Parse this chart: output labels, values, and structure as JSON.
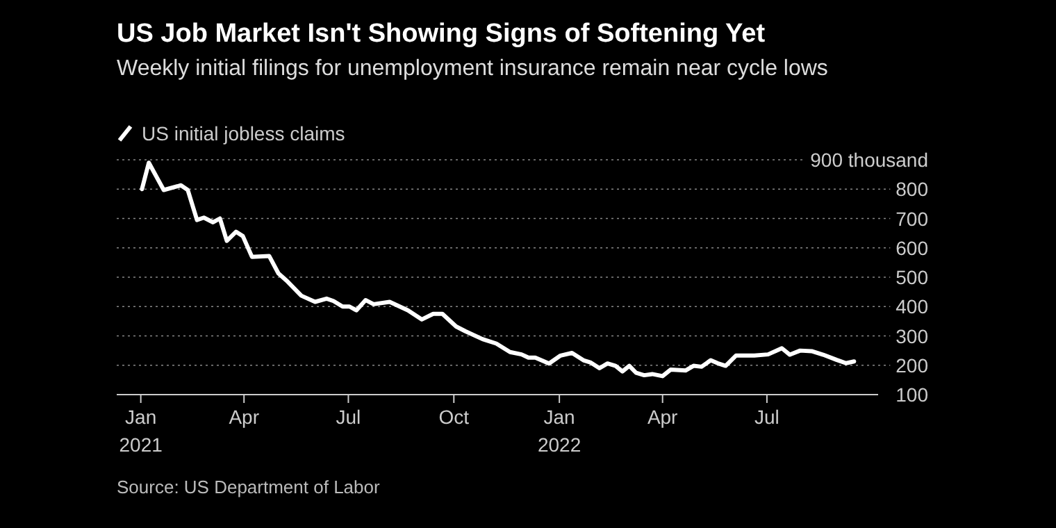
{
  "chart_data": {
    "type": "line",
    "title": "US Job Market Isn't Showing Signs of Softening Yet",
    "subtitle": "Weekly initial filings for unemployment insurance remain near cycle lows",
    "annotations": [
      "Source: US Department of Labor"
    ],
    "legend": "top left",
    "grid": "y",
    "line_style": "solid",
    "marker": "none",
    "xlim": [
      "2020-12-11",
      "2022-10-06"
    ],
    "xticks": [
      {
        "value": "2021-01-01",
        "label": "Jan 2021"
      },
      {
        "value": "2021-04-01",
        "label": "Apr"
      },
      {
        "value": "2021-07-01",
        "label": "Jul"
      },
      {
        "value": "2021-10-01",
        "label": "Oct"
      },
      {
        "value": "2022-01-01",
        "label": "Jan 2022"
      },
      {
        "value": "2022-04-01",
        "label": "Apr"
      },
      {
        "value": "2022-07-01",
        "label": "Jul"
      }
    ],
    "ylim": [
      100,
      900
    ],
    "yticks": [
      100,
      200,
      300,
      400,
      500,
      600,
      700,
      800,
      {
        "value": 900,
        "label": "900 thousand"
      }
    ],
    "x": [
      "2021-01-02",
      "2021-01-08",
      "2021-01-21",
      "2021-02-05",
      "2021-02-11",
      "2021-02-19",
      "2021-02-25",
      "2021-03-05",
      "2021-03-11",
      "2021-03-17",
      "2021-03-25",
      "2021-03-31",
      "2021-04-08",
      "2021-04-23",
      "2021-05-01",
      "2021-05-09",
      "2021-05-21",
      "2021-06-02",
      "2021-06-12",
      "2021-06-18",
      "2021-06-26",
      "2021-07-02",
      "2021-07-08",
      "2021-07-16",
      "2021-07-23",
      "2021-08-06",
      "2021-08-22",
      "2021-09-03",
      "2021-09-13",
      "2021-09-21",
      "2021-10-03",
      "2021-10-11",
      "2021-10-26",
      "2021-11-07",
      "2021-11-19",
      "2021-11-29",
      "2021-12-05",
      "2021-12-11",
      "2021-12-23",
      "2022-01-02",
      "2022-01-12",
      "2022-01-22",
      "2022-01-28",
      "2022-02-05",
      "2022-02-12",
      "2022-02-19",
      "2022-02-25",
      "2022-03-03",
      "2022-03-09",
      "2022-03-16",
      "2022-03-23",
      "2022-04-01",
      "2022-04-08",
      "2022-04-21",
      "2022-04-28",
      "2022-05-05",
      "2022-05-13",
      "2022-05-19",
      "2022-05-26",
      "2022-06-04",
      "2022-06-20",
      "2022-07-02",
      "2022-07-14",
      "2022-07-21",
      "2022-07-30",
      "2022-08-09",
      "2022-08-19",
      "2022-08-31",
      "2022-09-08",
      "2022-09-15"
    ],
    "series": [
      {
        "name": "US initial jobless claims",
        "color": "#ffffff",
        "values": [
          800,
          890,
          797,
          813,
          797,
          695,
          703,
          687,
          700,
          624,
          655,
          640,
          569,
          572,
          513,
          485,
          437,
          416,
          427,
          419,
          400,
          400,
          387,
          422,
          408,
          416,
          387,
          356,
          375,
          375,
          332,
          316,
          289,
          274,
          245,
          237,
          226,
          226,
          206,
          233,
          242,
          217,
          210,
          190,
          206,
          198,
          179,
          198,
          174,
          166,
          170,
          163,
          185,
          182,
          198,
          195,
          217,
          207,
          198,
          233,
          233,
          237,
          258,
          236,
          250,
          248,
          236,
          218,
          207,
          213
        ]
      }
    ]
  }
}
